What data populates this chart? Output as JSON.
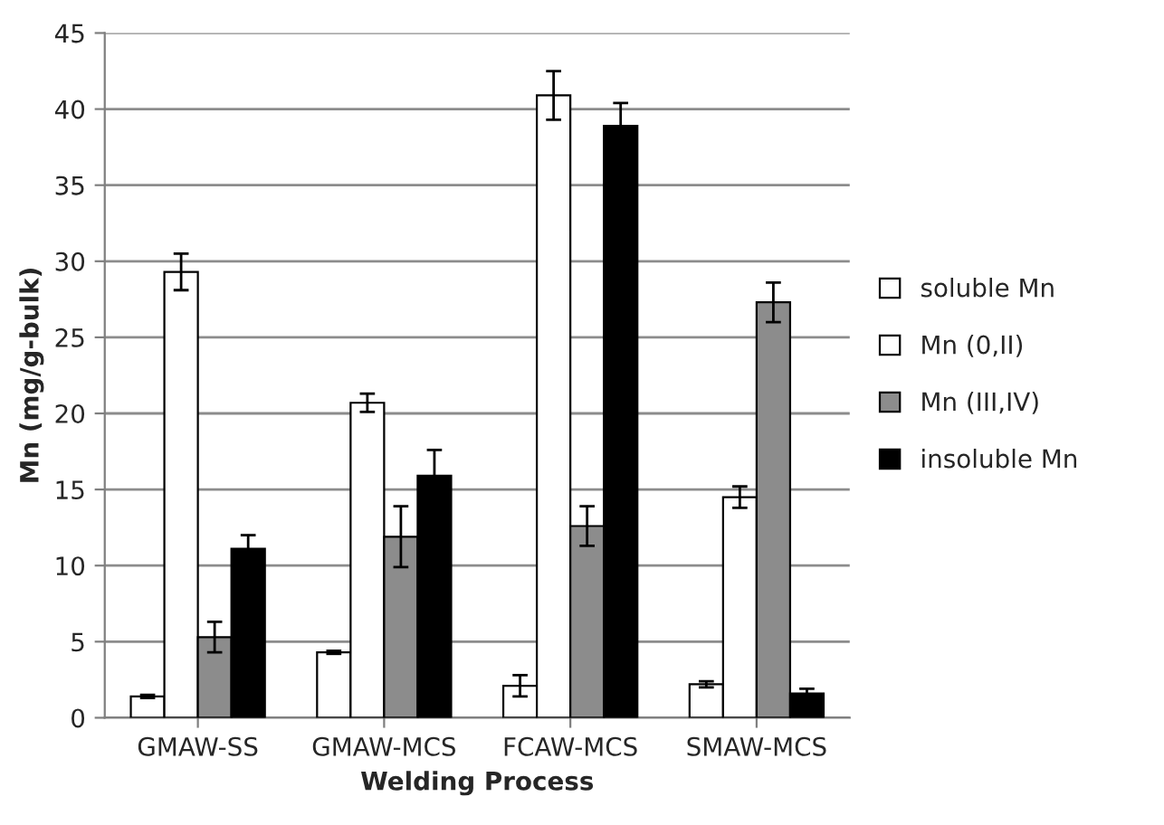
{
  "chart_data": {
    "type": "bar",
    "xlabel": "Welding Process",
    "ylabel": "Mn (mg/g-bulk)",
    "categories": [
      "GMAW-SS",
      "GMAW-MCS",
      "FCAW-MCS",
      "SMAW-MCS"
    ],
    "series": [
      {
        "name": "soluble Mn",
        "color": "#ffffff",
        "values": [
          1.4,
          4.3,
          2.1,
          2.2
        ],
        "errors": [
          0.1,
          0.1,
          0.7,
          0.2
        ]
      },
      {
        "name": "Mn (0,II)",
        "color": "#ffffff",
        "values": [
          29.3,
          20.7,
          40.9,
          14.5
        ],
        "errors": [
          1.2,
          0.6,
          1.6,
          0.7
        ]
      },
      {
        "name": "Mn (III,IV)",
        "color": "#8c8c8c",
        "values": [
          5.3,
          11.9,
          12.6,
          27.3
        ],
        "errors": [
          1.0,
          2.0,
          1.3,
          1.3
        ]
      },
      {
        "name": "insoluble Mn",
        "color": "#000000",
        "values": [
          11.1,
          15.9,
          38.9,
          1.6
        ],
        "errors": [
          0.9,
          1.7,
          1.5,
          0.3
        ]
      }
    ],
    "ylim": [
      0,
      45
    ],
    "yticks": [
      0,
      5,
      10,
      15,
      20,
      25,
      30,
      35,
      40,
      45
    ],
    "grid": "y",
    "legend": "right"
  }
}
